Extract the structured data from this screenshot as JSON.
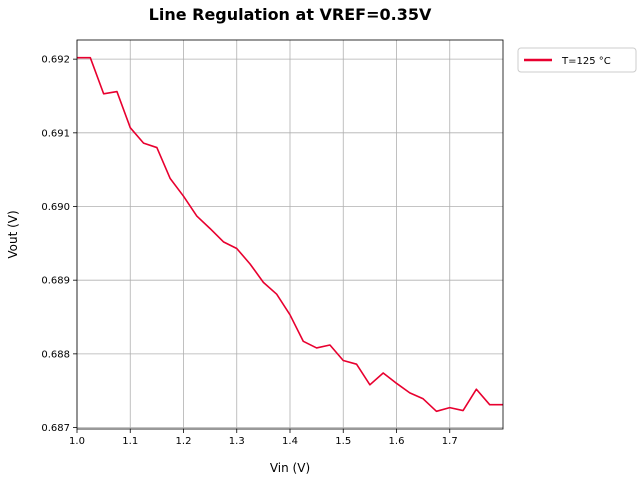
{
  "chart_data": {
    "type": "line",
    "title": "Line Regulation at VREF=0.35V",
    "xlabel": "Vin (V)",
    "ylabel": "Vout (V)",
    "xlim": [
      1.0,
      1.8
    ],
    "ylim": [
      0.68698,
      0.69226
    ],
    "x_ticks": [
      "1.0",
      "1.1",
      "1.2",
      "1.3",
      "1.4",
      "1.5",
      "1.6",
      "1.7"
    ],
    "y_ticks": [
      "0.687",
      "0.688",
      "0.689",
      "0.690",
      "0.691",
      "0.692"
    ],
    "grid": true,
    "legend_position": "outside-top-right",
    "series": [
      {
        "name": "T=125 °C",
        "color": "#e8002f",
        "x": [
          1.0,
          1.025,
          1.05,
          1.075,
          1.1,
          1.125,
          1.15,
          1.175,
          1.2,
          1.225,
          1.25,
          1.275,
          1.3,
          1.325,
          1.35,
          1.375,
          1.4,
          1.425,
          1.45,
          1.475,
          1.5,
          1.525,
          1.55,
          1.575,
          1.6,
          1.625,
          1.65,
          1.675,
          1.7,
          1.725,
          1.75,
          1.775,
          1.8
        ],
        "y": [
          0.69202,
          0.69202,
          0.69153,
          0.69156,
          0.69107,
          0.69086,
          0.6908,
          0.69038,
          0.69014,
          0.68987,
          0.6897,
          0.68952,
          0.68943,
          0.68922,
          0.68897,
          0.68881,
          0.68853,
          0.68817,
          0.68808,
          0.68812,
          0.68791,
          0.68786,
          0.68758,
          0.68774,
          0.6876,
          0.68747,
          0.68739,
          0.68722,
          0.68727,
          0.68723,
          0.68752,
          0.68731,
          0.68731
        ]
      }
    ]
  }
}
